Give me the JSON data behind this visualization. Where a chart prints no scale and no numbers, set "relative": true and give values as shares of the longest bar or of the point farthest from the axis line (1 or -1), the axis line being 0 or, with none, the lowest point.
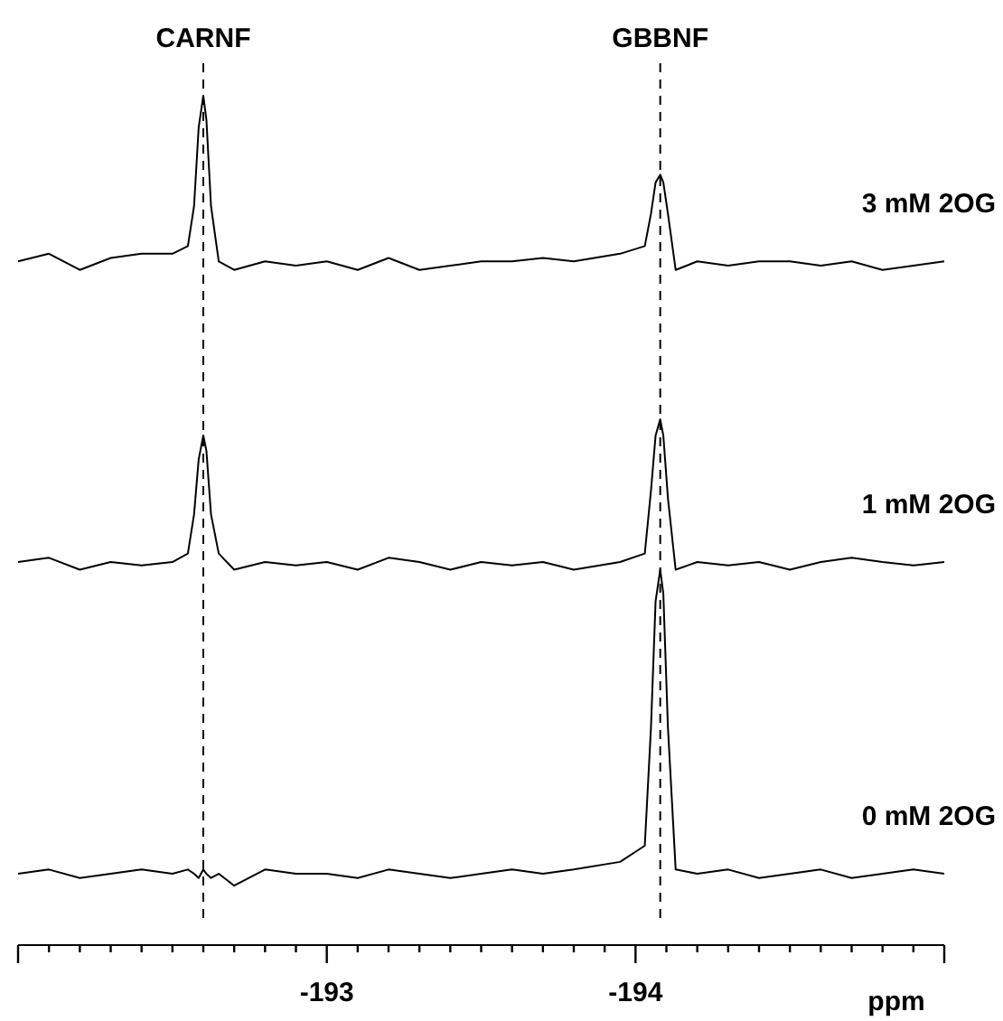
{
  "chart_data": {
    "type": "line",
    "relative": true,
    "xlabel": "ppm",
    "xlim": [
      -192,
      -195
    ],
    "xticks": [
      {
        "value": -192,
        "label": null
      },
      {
        "value": -192.1,
        "label": null
      },
      {
        "value": -192.2,
        "label": null
      },
      {
        "value": -192.3,
        "label": null
      },
      {
        "value": -192.4,
        "label": null
      },
      {
        "value": -192.5,
        "label": null
      },
      {
        "value": -192.6,
        "label": null
      },
      {
        "value": -192.7,
        "label": null
      },
      {
        "value": -192.8,
        "label": null
      },
      {
        "value": -192.9,
        "label": null
      },
      -193,
      {
        "value": -193.1,
        "label": null
      },
      {
        "value": -193.2,
        "label": null
      },
      {
        "value": -193.3,
        "label": null
      },
      {
        "value": -193.4,
        "label": null
      },
      {
        "value": -193.5,
        "label": null
      },
      {
        "value": -193.6,
        "label": null
      },
      {
        "value": -193.7,
        "label": null
      },
      {
        "value": -193.8,
        "label": null
      },
      {
        "value": -193.9,
        "label": null
      },
      -194,
      {
        "value": -194.1,
        "label": null
      },
      {
        "value": -194.2,
        "label": null
      },
      {
        "value": -194.3,
        "label": null
      },
      {
        "value": -194.4,
        "label": null
      },
      {
        "value": -194.5,
        "label": null
      },
      {
        "value": -194.6,
        "label": null
      },
      {
        "value": -194.7,
        "label": null
      },
      {
        "value": -194.8,
        "label": null
      },
      {
        "value": -194.9,
        "label": null
      },
      {
        "value": -195,
        "label": null
      }
    ],
    "x": [
      -192.0,
      -192.1,
      -192.2,
      -192.3,
      -192.4,
      -192.5,
      -192.55,
      -192.57,
      -192.585,
      -192.6,
      -192.61,
      -192.625,
      -192.65,
      -192.7,
      -192.8,
      -192.9,
      -193.0,
      -193.1,
      -193.2,
      -193.3,
      -193.4,
      -193.5,
      -193.6,
      -193.7,
      -193.8,
      -193.95,
      -194.03,
      -194.05,
      -194.065,
      -194.08,
      -194.09,
      -194.105,
      -194.13,
      -194.2,
      -194.3,
      -194.4,
      -194.5,
      -194.6,
      -194.7,
      -194.8,
      -194.9,
      -195.0
    ],
    "series": [
      {
        "name": "3 mM 2OG",
        "color": "#000000",
        "values": [
          0.805,
          0.814,
          0.795,
          0.809,
          0.814,
          0.814,
          0.823,
          0.87,
          0.963,
          1.0,
          0.972,
          0.87,
          0.805,
          0.795,
          0.805,
          0.8,
          0.805,
          0.795,
          0.809,
          0.795,
          0.8,
          0.805,
          0.805,
          0.809,
          0.805,
          0.814,
          0.823,
          0.861,
          0.898,
          0.907,
          0.898,
          0.861,
          0.795,
          0.805,
          0.8,
          0.805,
          0.805,
          0.8,
          0.805,
          0.795,
          0.8,
          0.805
        ]
      },
      {
        "name": "1 mM 2OG",
        "color": "#000000",
        "values": [
          0.451,
          0.456,
          0.442,
          0.451,
          0.447,
          0.451,
          0.461,
          0.507,
          0.572,
          0.6,
          0.582,
          0.507,
          0.461,
          0.442,
          0.451,
          0.447,
          0.451,
          0.442,
          0.456,
          0.451,
          0.442,
          0.451,
          0.447,
          0.451,
          0.442,
          0.451,
          0.461,
          0.535,
          0.6,
          0.619,
          0.6,
          0.526,
          0.442,
          0.451,
          0.447,
          0.451,
          0.442,
          0.451,
          0.456,
          0.451,
          0.447,
          0.451
        ]
      },
      {
        "name": "0 mM 2OG",
        "color": "#000000",
        "values": [
          0.084,
          0.089,
          0.079,
          0.084,
          0.089,
          0.084,
          0.089,
          0.084,
          0.079,
          0.089,
          0.084,
          0.079,
          0.084,
          0.07,
          0.089,
          0.084,
          0.084,
          0.079,
          0.089,
          0.084,
          0.079,
          0.084,
          0.089,
          0.084,
          0.089,
          0.098,
          0.117,
          0.256,
          0.405,
          0.442,
          0.414,
          0.256,
          0.089,
          0.084,
          0.089,
          0.079,
          0.084,
          0.089,
          0.079,
          0.084,
          0.089,
          0.084
        ]
      }
    ],
    "ref_lines": [
      {
        "axis": "x",
        "value": -192.6,
        "label": "CARNF",
        "color": "#000000",
        "line_style": "dashed"
      },
      {
        "axis": "x",
        "value": -194.08,
        "label": "GBBNF",
        "color": "#000000",
        "line_style": "dashed"
      }
    ]
  }
}
